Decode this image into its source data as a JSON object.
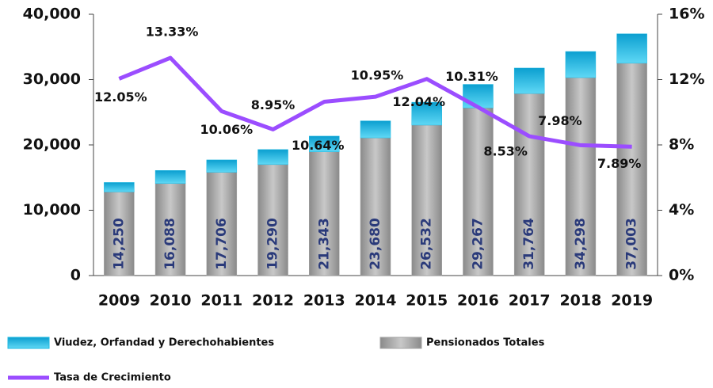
{
  "chart_data": {
    "type": "bar",
    "categories": [
      "2009",
      "2010",
      "2011",
      "2012",
      "2013",
      "2014",
      "2015",
      "2016",
      "2017",
      "2018",
      "2019"
    ],
    "series": [
      {
        "name": "Pensionados Totales",
        "color": "#a6a6a6",
        "values": [
          12800,
          14088,
          15806,
          16990,
          18943,
          21080,
          23032,
          25667,
          27864,
          30298,
          32503
        ]
      },
      {
        "name": "Viudez, Orfandad y Derechohabientes",
        "color": "#1fb8e0",
        "values": [
          1450,
          2000,
          1900,
          2300,
          2400,
          2600,
          3500,
          3600,
          3900,
          4000,
          4500
        ]
      },
      {
        "name": "Tasa de Crecimiento",
        "color": "#9b4dff",
        "type": "line",
        "axis": "y2",
        "values": [
          12.05,
          13.33,
          10.06,
          8.95,
          10.64,
          10.95,
          12.04,
          10.31,
          8.53,
          7.98,
          7.89
        ],
        "value_labels": [
          "12.05%",
          "13.33%",
          "10.06%",
          "8.95%",
          "10.64%",
          "10.95%",
          "12.04%",
          "10.31%",
          "8.53%",
          "7.98%",
          "7.89%"
        ]
      }
    ],
    "totals": [
      14250,
      16088,
      17706,
      19290,
      21343,
      23680,
      26532,
      29267,
      31764,
      34298,
      37003
    ],
    "total_labels": [
      "14,250",
      "16,088",
      "17,706",
      "19,290",
      "21,343",
      "23,680",
      "26,532",
      "29,267",
      "31,764",
      "34,298",
      "37,003"
    ],
    "ylim": [
      0,
      40000
    ],
    "yticks": [
      0,
      {
        "value": 10000,
        "label": "10,000"
      },
      {
        "value": 20000,
        "label": "20,000"
      },
      {
        "value": 30000,
        "label": "30,000"
      },
      {
        "value": 40000,
        "label": "40,000"
      }
    ],
    "y2lim": [
      0,
      16
    ],
    "y2ticks": [
      {
        "value": 0,
        "label": "0%"
      },
      {
        "value": 4,
        "label": "4%"
      },
      {
        "value": 8,
        "label": "8%"
      },
      {
        "value": 12,
        "label": "12%"
      },
      {
        "value": 16,
        "label": "16%"
      }
    ],
    "legend": "bottom"
  }
}
